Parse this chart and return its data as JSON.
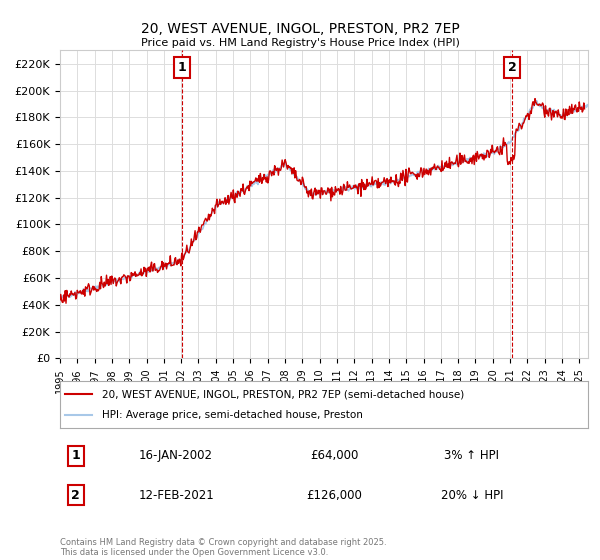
{
  "title": "20, WEST AVENUE, INGOL, PRESTON, PR2 7EP",
  "subtitle": "Price paid vs. HM Land Registry's House Price Index (HPI)",
  "ylabel_ticks": [
    "£0",
    "£20K",
    "£40K",
    "£60K",
    "£80K",
    "£100K",
    "£120K",
    "£140K",
    "£160K",
    "£180K",
    "£200K",
    "£220K"
  ],
  "ytick_values": [
    0,
    20000,
    40000,
    60000,
    80000,
    100000,
    120000,
    140000,
    160000,
    180000,
    200000,
    220000
  ],
  "ylim": [
    0,
    230000
  ],
  "xlim_start": 1995.0,
  "xlim_end": 2025.5,
  "xtick_years": [
    1995,
    1996,
    1997,
    1998,
    1999,
    2000,
    2001,
    2002,
    2003,
    2004,
    2005,
    2006,
    2007,
    2008,
    2009,
    2010,
    2011,
    2012,
    2013,
    2014,
    2015,
    2016,
    2017,
    2018,
    2019,
    2020,
    2021,
    2022,
    2023,
    2024,
    2025
  ],
  "hpi_color": "#a8c8e8",
  "price_color": "#cc0000",
  "marker1_x": 2002.04,
  "marker2_x": 2021.12,
  "vline1_x": 2002.04,
  "vline2_x": 2021.12,
  "legend_line1": "20, WEST AVENUE, INGOL, PRESTON, PR2 7EP (semi-detached house)",
  "legend_line2": "HPI: Average price, semi-detached house, Preston",
  "annotation1_num": "1",
  "annotation1_date": "16-JAN-2002",
  "annotation1_price": "£64,000",
  "annotation1_hpi": "3% ↑ HPI",
  "annotation2_num": "2",
  "annotation2_date": "12-FEB-2021",
  "annotation2_price": "£126,000",
  "annotation2_hpi": "20% ↓ HPI",
  "footer": "Contains HM Land Registry data © Crown copyright and database right 2025.\nThis data is licensed under the Open Government Licence v3.0.",
  "background_color": "#ffffff",
  "grid_color": "#dddddd"
}
